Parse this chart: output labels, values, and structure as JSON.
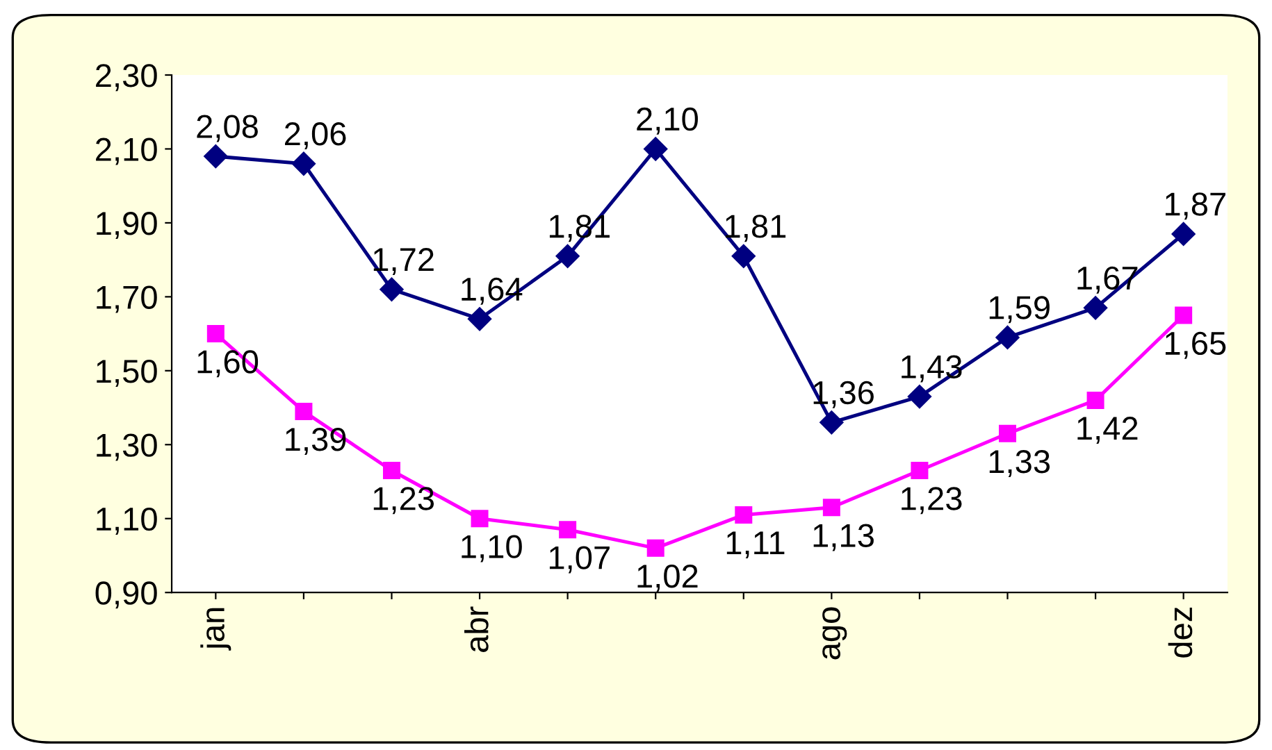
{
  "chart_data": {
    "type": "line",
    "categories": [
      "jan",
      null,
      null,
      "abr",
      null,
      null,
      null,
      "ago",
      null,
      null,
      null,
      "dez"
    ],
    "ylim": [
      0.9,
      2.3
    ],
    "yticks": [
      {
        "value": 0.9,
        "label": "0,90"
      },
      {
        "value": 1.1,
        "label": "1,10"
      },
      {
        "value": 1.3,
        "label": "1,30"
      },
      {
        "value": 1.5,
        "label": "1,50"
      },
      {
        "value": 1.7,
        "label": "1,70"
      },
      {
        "value": 1.9,
        "label": "1,90"
      },
      {
        "value": 2.1,
        "label": "2,10"
      },
      {
        "value": 2.3,
        "label": "2,30"
      }
    ],
    "grid": false,
    "legend": false,
    "series": [
      {
        "color": "#000080",
        "marker": "diamond",
        "values": [
          2.08,
          2.06,
          1.72,
          1.64,
          1.81,
          2.1,
          1.81,
          1.36,
          1.43,
          1.59,
          1.67,
          1.87
        ],
        "value_labels": [
          "2,08",
          "2,06",
          "1,72",
          "1,64",
          "1,81",
          "2,10",
          "1,81",
          "1,36",
          "1,43",
          "1,59",
          "1,67",
          "1,87"
        ]
      },
      {
        "color": "#ff00ff",
        "marker": "square",
        "values": [
          1.6,
          1.39,
          1.23,
          1.1,
          1.07,
          1.02,
          1.11,
          1.13,
          1.23,
          1.33,
          1.42,
          1.65
        ],
        "value_labels": [
          "1,60",
          "1,39",
          "1,23",
          "1,10",
          "1,07",
          "1,02",
          "1,11",
          "1,13",
          "1,23",
          "1,33",
          "1,42",
          "1,65"
        ]
      }
    ]
  }
}
